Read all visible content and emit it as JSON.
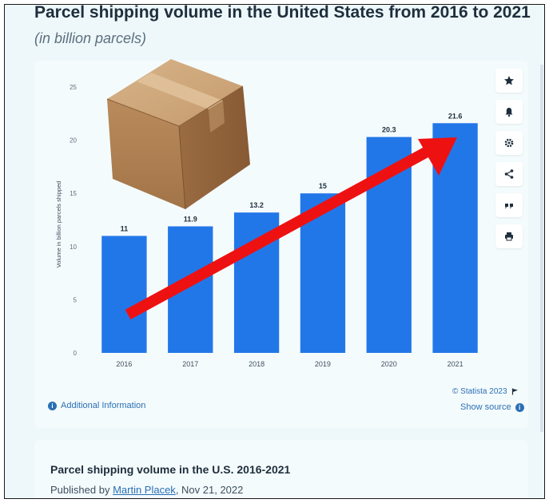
{
  "header": {
    "title": "Parcel shipping volume in the United States from 2016 to 2021",
    "subtitle": "(in billion parcels)"
  },
  "chart_data": {
    "type": "bar",
    "categories": [
      "2016",
      "2017",
      "2018",
      "2019",
      "2020",
      "2021"
    ],
    "values": [
      11,
      11.9,
      13.2,
      15,
      20.3,
      21.6
    ],
    "value_labels": [
      "11",
      "11.9",
      "13.2",
      "15",
      "20.3",
      "21.6"
    ],
    "y_ticks": [
      0,
      5,
      10,
      15,
      20,
      25
    ],
    "ylim": [
      0,
      25
    ],
    "ylabel": "Volume in billion parcels shipped",
    "xlabel": "",
    "grid": false,
    "bar_color": "#2277e8",
    "overlay": "red trend arrow from 2016 to 2021 and cardboard box illustration"
  },
  "colors": {
    "bar": "#2277e8",
    "arrow": "#ee1111",
    "link": "#2a6fb4",
    "title": "#1f2e3c"
  },
  "toolbar": {
    "icons": [
      "star-icon",
      "bell-icon",
      "gear-icon",
      "share-icon",
      "quote-icon",
      "print-icon"
    ]
  },
  "footer": {
    "additional_info": "Additional Information",
    "credit": "© Statista 2023",
    "show_source": "Show source"
  },
  "details": {
    "title": "Parcel shipping volume in the U.S. 2016-2021",
    "published_prefix": "Published by ",
    "author": "Martin Placek",
    "published_suffix": ", Nov 21, 2022"
  }
}
